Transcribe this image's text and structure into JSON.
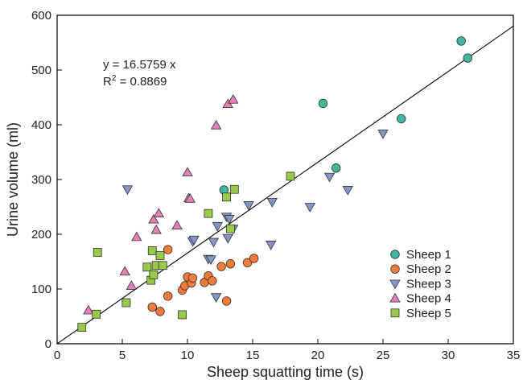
{
  "chart_data": {
    "type": "scatter",
    "title": "",
    "xlabel": "Sheep squatting time (s)",
    "ylabel": "Urine volume (ml)",
    "xlim": [
      0,
      35
    ],
    "ylim": [
      0,
      600
    ],
    "xticks": [
      "0",
      "5",
      "10",
      "15",
      "20",
      "25",
      "30",
      "35"
    ],
    "yticks": [
      "0",
      "100",
      "200",
      "300",
      "400",
      "500",
      "600"
    ],
    "grid": false,
    "legend_position": "bottom-right",
    "annotation": {
      "equation": "y = 16.5759 x",
      "r2_prefix": "R",
      "r2_exp": "2",
      "r2_value": " = 0.8869"
    },
    "fit_line": {
      "slope": 16.5759,
      "x_range": [
        0,
        35
      ]
    },
    "series": [
      {
        "name": "Sheep 1",
        "marker": "circle",
        "color": "#3fb8a0",
        "points": [
          [
            12.8,
            281
          ],
          [
            20.4,
            439
          ],
          [
            21.4,
            321
          ],
          [
            26.4,
            411
          ],
          [
            31.0,
            553
          ],
          [
            31.5,
            522
          ]
        ]
      },
      {
        "name": "Sheep 2",
        "marker": "circle",
        "color": "#f27b3a",
        "points": [
          [
            7.3,
            67
          ],
          [
            7.9,
            59
          ],
          [
            8.5,
            172
          ],
          [
            8.5,
            87
          ],
          [
            9.6,
            98
          ],
          [
            9.8,
            106
          ],
          [
            10.0,
            122
          ],
          [
            10.3,
            111
          ],
          [
            10.4,
            120
          ],
          [
            11.3,
            112
          ],
          [
            11.6,
            124
          ],
          [
            11.9,
            115
          ],
          [
            12.6,
            141
          ],
          [
            13.0,
            78
          ],
          [
            13.3,
            146
          ],
          [
            14.6,
            148
          ],
          [
            15.1,
            156
          ]
        ]
      },
      {
        "name": "Sheep 3",
        "marker": "triangle-down",
        "color": "#8197c9",
        "points": [
          [
            5.4,
            282
          ],
          [
            10.4,
            187
          ],
          [
            10.5,
            190
          ],
          [
            11.6,
            155
          ],
          [
            11.8,
            154
          ],
          [
            12.0,
            186
          ],
          [
            12.2,
            85
          ],
          [
            12.3,
            215
          ],
          [
            13.0,
            232
          ],
          [
            13.1,
            193
          ],
          [
            13.2,
            228
          ],
          [
            13.5,
            210
          ],
          [
            14.7,
            253
          ],
          [
            16.4,
            181
          ],
          [
            16.5,
            259
          ],
          [
            19.4,
            250
          ],
          [
            20.9,
            305
          ],
          [
            22.3,
            281
          ],
          [
            25.0,
            384
          ]
        ]
      },
      {
        "name": "Sheep 4",
        "marker": "triangle-up",
        "color": "#e47fb7",
        "points": [
          [
            2.4,
            61
          ],
          [
            5.2,
            132
          ],
          [
            5.7,
            106
          ],
          [
            6.1,
            195
          ],
          [
            7.4,
            227
          ],
          [
            7.6,
            208
          ],
          [
            7.8,
            238
          ],
          [
            9.2,
            216
          ],
          [
            10.0,
            313
          ],
          [
            10.1,
            266
          ],
          [
            10.2,
            265
          ],
          [
            12.2,
            399
          ],
          [
            13.1,
            438
          ],
          [
            13.5,
            446
          ]
        ]
      },
      {
        "name": "Sheep 5",
        "marker": "square",
        "color": "#98c94a",
        "points": [
          [
            1.9,
            30
          ],
          [
            3.0,
            54
          ],
          [
            3.1,
            167
          ],
          [
            5.3,
            75
          ],
          [
            6.9,
            140
          ],
          [
            7.2,
            116
          ],
          [
            7.3,
            170
          ],
          [
            7.4,
            126
          ],
          [
            7.6,
            143
          ],
          [
            7.9,
            161
          ],
          [
            8.1,
            143
          ],
          [
            9.6,
            53
          ],
          [
            11.6,
            238
          ],
          [
            13.0,
            268
          ],
          [
            13.3,
            210
          ],
          [
            13.6,
            282
          ],
          [
            17.9,
            306
          ]
        ]
      }
    ]
  }
}
